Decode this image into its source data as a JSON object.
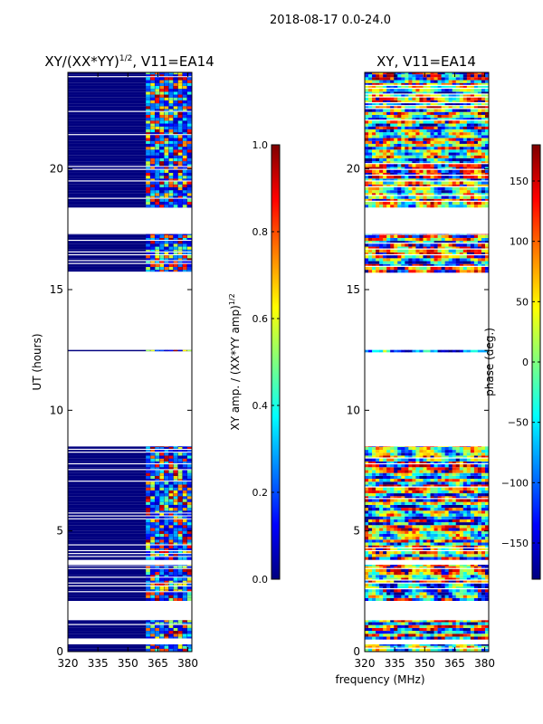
{
  "figure": {
    "suptitle": "2018-08-17 0.0-24.0",
    "xlabel_shared": "frequency (MHz)"
  },
  "chart_data": [
    {
      "type": "heatmap",
      "title": "XY/(XX*YY)^1/2, V11=EA14",
      "title_main": "XY/(XX*YY)",
      "title_sup": "1/2",
      "title_tail": ", V11=EA14",
      "xlabel": "",
      "ylabel": "UT (hours)",
      "xlim": [
        320,
        382
      ],
      "ylim": [
        0,
        24
      ],
      "xticks": [
        320,
        335,
        350,
        365,
        380
      ],
      "yticks": [
        0,
        5,
        10,
        15,
        20
      ],
      "colorbar": {
        "label": "XY amp. / (XX*YY amp)^1/2",
        "label_main": "XY amp. / (XX*YY amp)",
        "label_sup": "1/2",
        "range": [
          0.0,
          1.0
        ],
        "ticks": [
          "0.0",
          "0.2",
          "0.4",
          "0.6",
          "0.8",
          "1.0"
        ],
        "colormap": "jet"
      },
      "data_ut_intervals": [
        [
          0.0,
          0.3
        ],
        [
          0.5,
          1.3
        ],
        [
          2.1,
          3.6
        ],
        [
          3.8,
          8.5
        ],
        [
          12.4,
          12.5
        ],
        [
          15.7,
          17.3
        ],
        [
          18.4,
          24.0
        ]
      ],
      "rfi_band_mhz": [
        359,
        382
      ]
    },
    {
      "type": "heatmap",
      "title": "XY, V11=EA14",
      "xlabel": "frequency (MHz)",
      "ylabel": "",
      "xlim": [
        320,
        382
      ],
      "ylim": [
        0,
        24
      ],
      "xticks": [
        320,
        335,
        350,
        365,
        380
      ],
      "yticks": [
        0,
        5,
        10,
        15,
        20
      ],
      "colorbar": {
        "label": "phase (deg.)",
        "range": [
          -180,
          180
        ],
        "ticks": [
          "−150",
          "−100",
          "−50",
          "0",
          "50",
          "100",
          "150"
        ],
        "colormap": "jet"
      },
      "data_ut_intervals": [
        [
          0.0,
          0.3
        ],
        [
          0.5,
          1.3
        ],
        [
          2.1,
          3.6
        ],
        [
          3.8,
          8.5
        ],
        [
          12.4,
          12.5
        ],
        [
          15.7,
          17.3
        ],
        [
          18.4,
          24.0
        ]
      ]
    }
  ],
  "colors": {
    "jet": [
      "#00007f",
      "#0000ff",
      "#007fff",
      "#00ffff",
      "#7fff7f",
      "#ffff00",
      "#ff7f00",
      "#ff0000",
      "#7f0000"
    ],
    "axis": "#000000",
    "background": "#ffffff"
  }
}
